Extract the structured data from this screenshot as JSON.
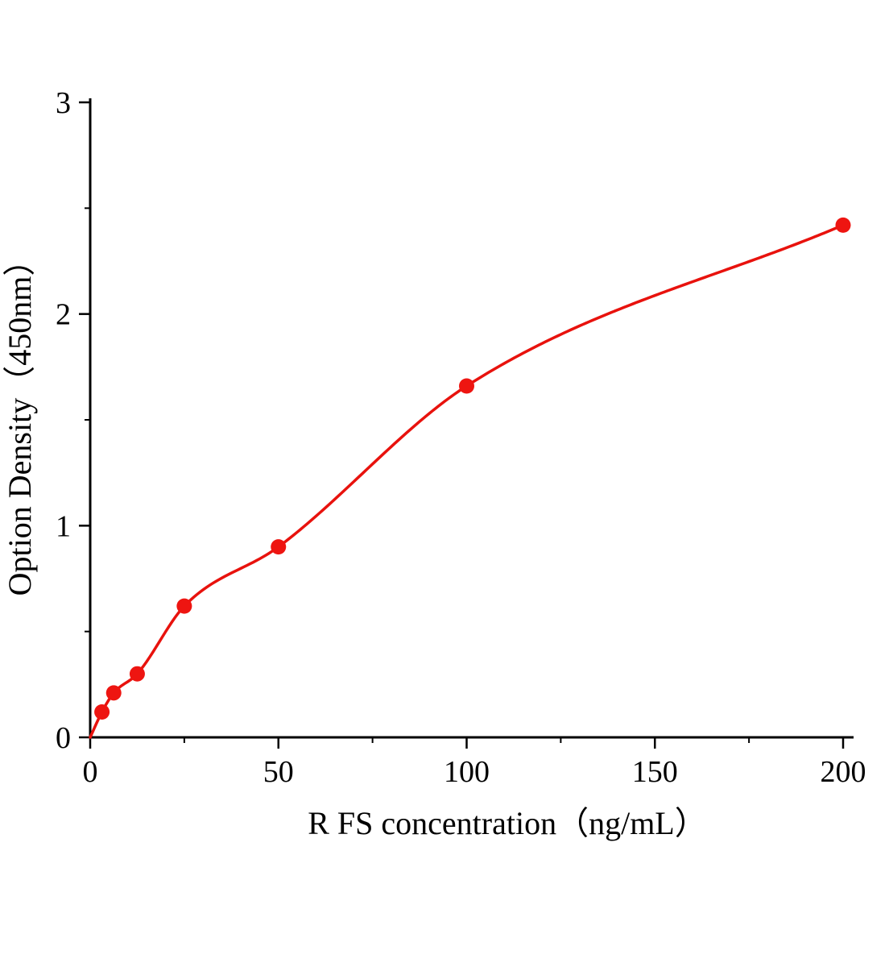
{
  "chart_data": {
    "type": "scatter",
    "title": "",
    "xlabel": "R FS  concentration（ng/mL）",
    "ylabel": "Option Density（450nm）",
    "xlim": [
      0,
      202
    ],
    "ylim": [
      0,
      3
    ],
    "x_major_ticks": [
      0,
      50,
      100,
      150,
      200
    ],
    "x_minor_ticks": [
      25,
      75,
      125,
      175
    ],
    "y_major_ticks": [
      0,
      1,
      2,
      3
    ],
    "y_minor_ticks": [
      0.5,
      1.5,
      2.5
    ],
    "grid": "off",
    "legend": null,
    "curve_start": {
      "x": 0,
      "y": 0
    },
    "points": [
      {
        "x": 3.12,
        "y": 0.12
      },
      {
        "x": 6.25,
        "y": 0.21
      },
      {
        "x": 12.5,
        "y": 0.3
      },
      {
        "x": 25,
        "y": 0.62
      },
      {
        "x": 50,
        "y": 0.9
      },
      {
        "x": 100,
        "y": 1.66
      },
      {
        "x": 200,
        "y": 2.42
      }
    ],
    "colors": {
      "line": "#e8120d",
      "point": "#ee1511",
      "axis": "#000000",
      "text": "#000000",
      "background": "#ffffff"
    }
  }
}
